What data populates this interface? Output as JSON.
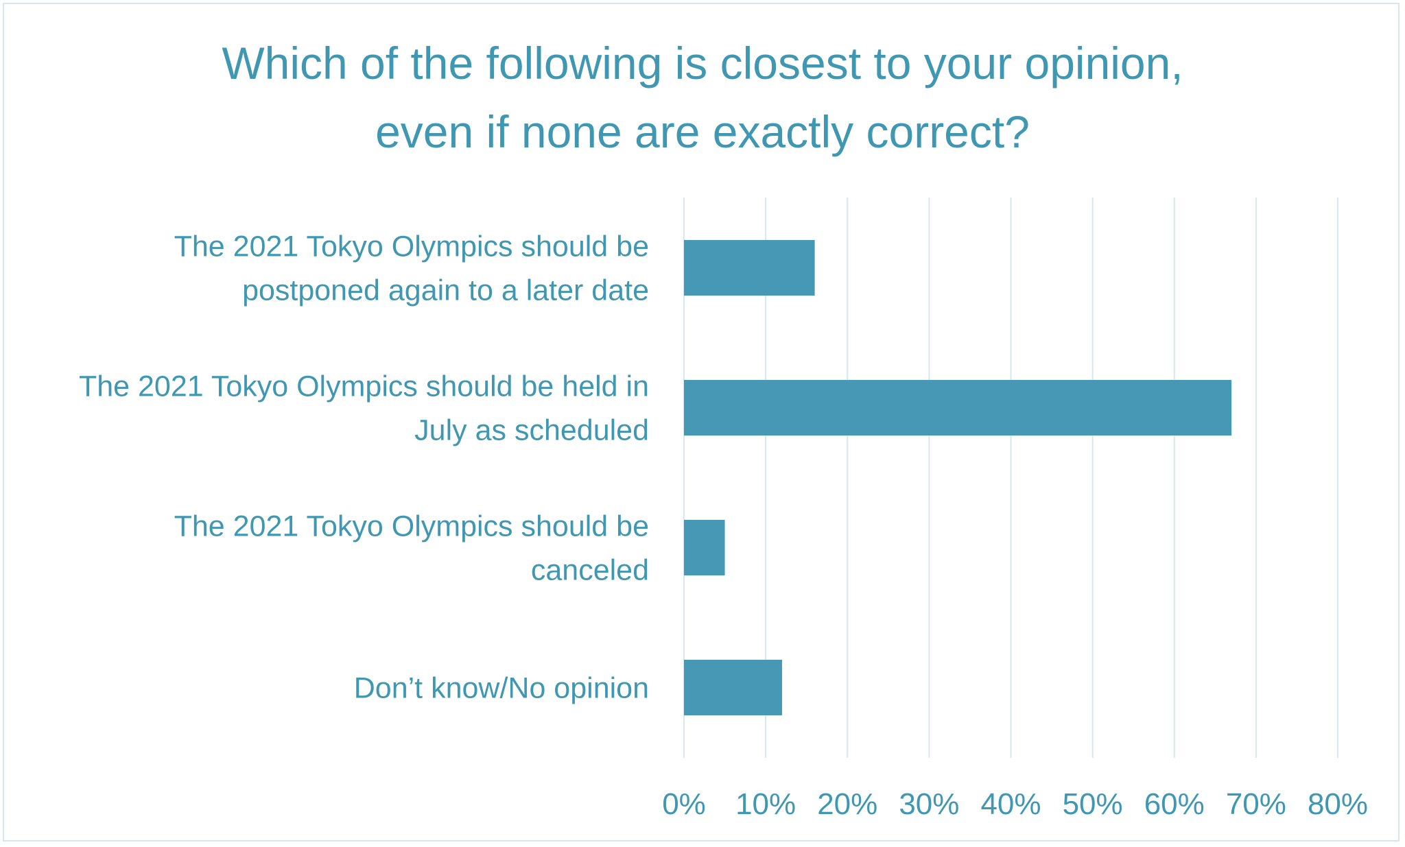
{
  "chart_data": {
    "type": "bar",
    "orientation": "horizontal",
    "title": [
      "Which of the following is closest to your opinion,",
      "even if none are exactly correct?"
    ],
    "categories": [
      [
        "The 2021 Tokyo Olympics should be",
        "postponed again to a later date"
      ],
      [
        "The 2021 Tokyo Olympics should be held in",
        "July as scheduled"
      ],
      [
        "The 2021 Tokyo Olympics should be",
        "canceled"
      ],
      [
        "Don’t know/No opinion"
      ]
    ],
    "values": [
      16,
      67,
      5,
      12
    ],
    "xlim": [
      0,
      80
    ],
    "xticks": [
      "0%",
      "10%",
      "20%",
      "30%",
      "40%",
      "50%",
      "60%",
      "70%",
      "80%"
    ],
    "grid": "vertical",
    "legend": "none",
    "colors": {
      "bar": "#4698b5",
      "text": "#3f97b2",
      "grid": "#d6e8ef"
    }
  }
}
